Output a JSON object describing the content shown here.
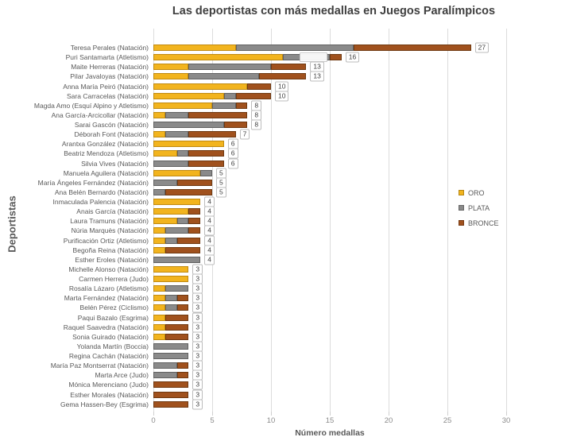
{
  "title": "Las deportistas con más medallas en Juegos Paralímpicos",
  "x_axis": {
    "label": "Número medallas",
    "ticks": [
      0,
      5,
      10,
      15,
      20,
      25,
      30
    ],
    "range": [
      0,
      30
    ]
  },
  "y_axis": {
    "label": "Deportistas"
  },
  "legend": {
    "position": "right",
    "entries": [
      "ORO",
      "PLATA",
      "BRONCE"
    ]
  },
  "colors": {
    "oro": "#F2B41E",
    "plata": "#8A8A8A",
    "bronce": "#A0511D",
    "gridline": "#DCDCDC"
  },
  "chart_data": {
    "type": "bar",
    "orientation": "horizontal",
    "stacked": true,
    "grid": true,
    "title": "Las deportistas con más medallas en Juegos Paralímpicos",
    "xlabel": "Número medallas",
    "ylabel": "Deportistas",
    "xlim": [
      0,
      30
    ],
    "categories": [
      "Teresa Perales (Natación)",
      "Puri Santamarta (Atletismo)",
      "Maite Herreras (Natación)",
      "Pilar Javaloyas (Natación)",
      "Anna María Peiró (Natación)",
      "Sara Carracelas (Natación)",
      "Magda Amo (Esquí Alpino y Atletismo)",
      "Ana García-Arcicollar (Natación)",
      "Sarai Gascón (Natación)",
      "Déborah Font (Natación)",
      "Arantxa González (Natación)",
      "Beatriz Mendoza (Atletismo)",
      "Silvia Vives (Natación)",
      "Manuela Aguilera (Natación)",
      "María Ángeles Fernández (Natación)",
      "Ana Belén Bernardo (Natación)",
      "Inmaculada Palencia (Natación)",
      "Anais García (Natación)",
      "Laura Tramuns (Natación)",
      "Núria Marquès (Natación)",
      "Purificación Ortiz (Atletismo)",
      "Begoña Reina (Natación)",
      "Esther Eroles (Natación)",
      "Michelle Alonso (Natación)",
      "Carmen Herrera (Judo)",
      "Rosalía Lázaro (Atletismo)",
      "Marta Fernández (Natación)",
      "Belén Pérez (Ciclismo)",
      "Paqui Bazalo (Esgrima)",
      "Raquel Saavedra (Natación)",
      "Sonia Guirado (Natación)",
      "Yolanda Martín (Boccia)",
      "Regina Cachán (Natación)",
      "María Paz Montserrat (Natación)",
      "Marta Arce (Judo)",
      "Mónica Merenciano (Judo)",
      "Esther Morales (Natación)",
      "Gema Hassen-Bey (Esgrima)"
    ],
    "series": [
      {
        "name": "ORO",
        "color": "#F2B41E",
        "values": [
          7,
          11,
          3,
          3,
          8,
          6,
          5,
          1,
          0,
          1,
          6,
          2,
          0,
          4,
          0,
          0,
          4,
          3,
          2,
          1,
          1,
          1,
          0,
          3,
          3,
          1,
          1,
          1,
          1,
          1,
          1,
          0,
          0,
          0,
          0,
          0,
          0,
          0
        ]
      },
      {
        "name": "PLATA",
        "color": "#8A8A8A",
        "values": [
          10,
          4,
          7,
          6,
          0,
          1,
          2,
          2,
          6,
          2,
          0,
          1,
          3,
          1,
          2,
          1,
          0,
          0,
          1,
          2,
          1,
          0,
          4,
          0,
          0,
          2,
          1,
          1,
          0,
          0,
          0,
          3,
          3,
          2,
          2,
          0,
          0,
          0
        ]
      },
      {
        "name": "BRONCE",
        "color": "#A0511D",
        "values": [
          10,
          1,
          3,
          4,
          2,
          3,
          1,
          5,
          2,
          4,
          0,
          3,
          3,
          0,
          3,
          4,
          0,
          1,
          1,
          1,
          2,
          3,
          0,
          0,
          0,
          0,
          1,
          1,
          2,
          2,
          2,
          0,
          0,
          1,
          1,
          3,
          3,
          3
        ]
      }
    ],
    "totals": [
      27,
      16,
      13,
      13,
      10,
      10,
      8,
      8,
      8,
      7,
      6,
      6,
      6,
      5,
      5,
      5,
      4,
      4,
      4,
      4,
      4,
      4,
      4,
      3,
      3,
      3,
      3,
      3,
      3,
      3,
      3,
      3,
      3,
      3,
      3,
      3,
      3,
      3
    ],
    "stray_label_box": {
      "category_index": 1
    }
  }
}
